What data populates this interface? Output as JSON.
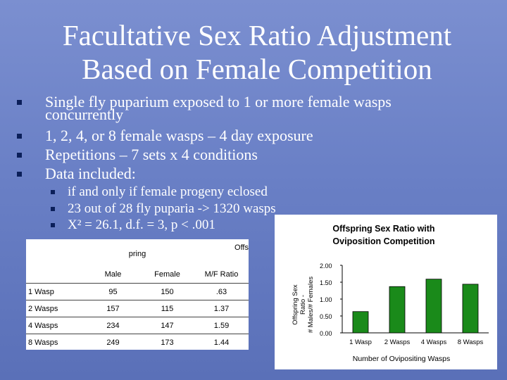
{
  "slide": {
    "title_line1": "Facultative Sex Ratio Adjustment",
    "title_line2": "Based on Female Competition"
  },
  "bullets": [
    {
      "line1": "Single fly puparium exposed to 1 or more female wasps",
      "line2": "concurrently"
    },
    {
      "line1": "1, 2, 4, or 8 female wasps – 4 day exposure"
    },
    {
      "line1": "Repetitions – 7 sets x 4 conditions"
    },
    {
      "line1": "Data included:"
    }
  ],
  "subbullets": [
    "if and only if female progeny eclosed",
    "23 out of 28 fly puparia -> 1320 wasps",
    "X² = 26.1, d.f. = 3, p < .001"
  ],
  "table": {
    "caption_offs": "Offs",
    "caption_pring": "pring",
    "headers": [
      "",
      "Male",
      "Female",
      "M/F Ratio"
    ],
    "rows": [
      [
        "1 Wasp",
        "95",
        "150",
        ".63"
      ],
      [
        "2 Wasps",
        "157",
        "115",
        "1.37"
      ],
      [
        "4 Wasps",
        "234",
        "147",
        "1.59"
      ],
      [
        "8 Wasps",
        "249",
        "173",
        "1.44"
      ]
    ]
  },
  "chart_data": {
    "type": "bar",
    "title": "Offspring Sex Ratio with Oviposition Competition",
    "title_line1": "Offspring Sex Ratio with",
    "title_line2": "Oviposition Competition",
    "categories": [
      "1 Wasp",
      "2 Wasps",
      "4 Wasps",
      "8 Wasps"
    ],
    "values": [
      0.63,
      1.37,
      1.59,
      1.44
    ],
    "xlabel": "Number of Ovipositing Wasps",
    "ylabel": "Offspring Sex Ratio - # Males/# Females",
    "ylabel_lines": [
      "Offspring Sex",
      "Ratio -",
      "# Males/# Females"
    ],
    "ylim": [
      0,
      2
    ],
    "yticks": [
      "0.00",
      "0.50",
      "1.00",
      "1.50",
      "2.00"
    ],
    "bar_color": "#1a8a1a"
  }
}
